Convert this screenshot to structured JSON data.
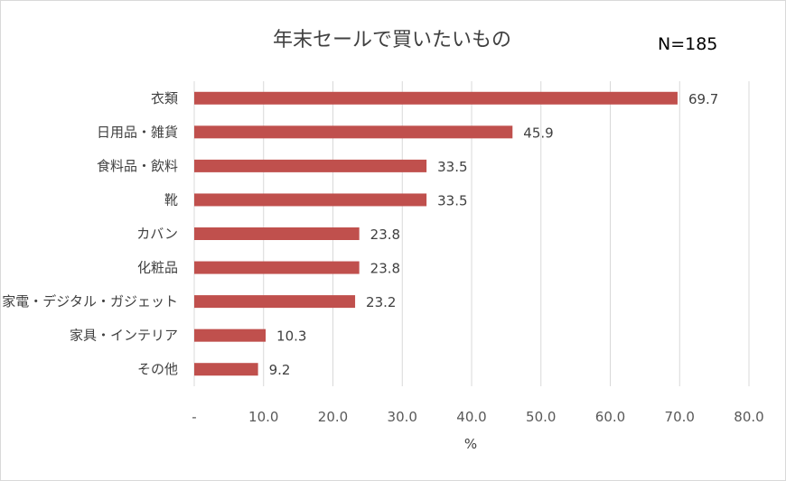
{
  "chart_data": {
    "type": "bar",
    "orientation": "horizontal",
    "title": "年末セールで買いたいもの",
    "annotation": "N=185",
    "xlabel": "%",
    "ylabel": "",
    "xlim": [
      0,
      80
    ],
    "x_ticks": [
      0,
      10,
      20,
      30,
      40,
      50,
      60,
      70,
      80
    ],
    "x_tick_labels": [
      "-",
      "10.0",
      "20.0",
      "30.0",
      "40.0",
      "50.0",
      "60.0",
      "70.0",
      "80.0"
    ],
    "grid": "vertical",
    "legend": "none",
    "bar_color": "#c0504d",
    "categories": [
      "衣類",
      "日用品・雑貨",
      "食料品・飲料",
      "靴",
      "カバン",
      "化粧品",
      "家電・デジタル・ガジェット",
      "家具・インテリア",
      "その他"
    ],
    "values": [
      69.7,
      45.9,
      33.5,
      33.5,
      23.8,
      23.8,
      23.2,
      10.3,
      9.2
    ],
    "value_labels": [
      "69.7",
      "45.9",
      "33.5",
      "33.5",
      "23.8",
      "23.8",
      "23.2",
      "10.3",
      "9.2"
    ]
  }
}
